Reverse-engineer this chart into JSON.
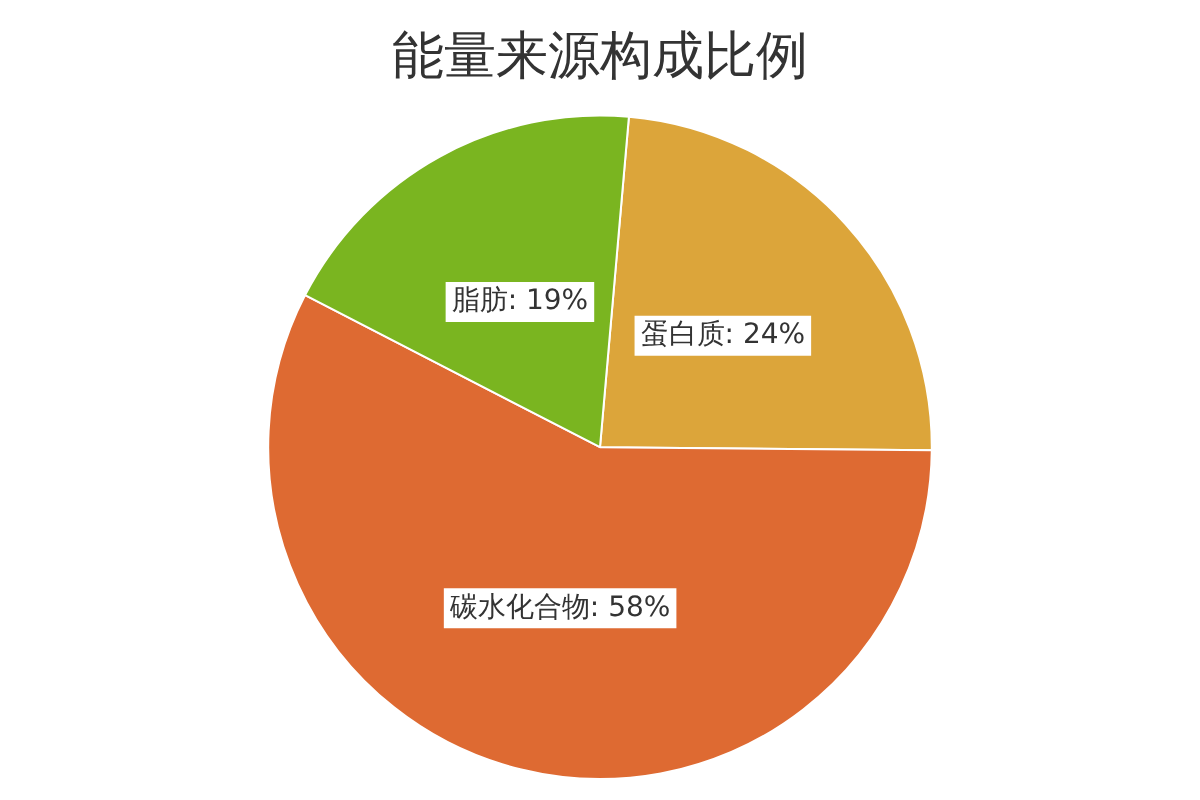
{
  "chart_data": {
    "type": "pie",
    "title": "能量来源构成比例",
    "categories": [
      "蛋白质",
      "碳水化合物",
      "脂肪"
    ],
    "values": [
      24,
      58,
      19
    ],
    "colors": [
      "#dca53a",
      "#de6a32",
      "#7ab520"
    ],
    "value_labels": [
      "24%",
      "58%",
      "19%"
    ],
    "legend": false
  }
}
